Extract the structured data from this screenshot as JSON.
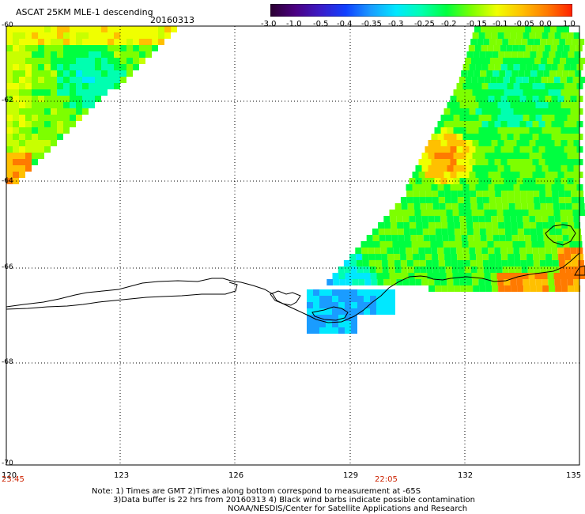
{
  "header": {
    "title": "ASCAT 25KM MLE-1 descending",
    "date": "20160313"
  },
  "colorbar": {
    "labels": [
      "-3.0",
      "-1.0",
      "-0.5",
      "-0.4",
      "-0.35",
      "-0.3",
      "-0.25",
      "-0.2",
      "-0.15",
      "-0.1",
      "-0.05",
      "0.0",
      "1.0"
    ],
    "colors": [
      "#2a0030",
      "#4b0082",
      "#3a1cc8",
      "#1040ff",
      "#1a9cff",
      "#00e8ff",
      "#00ffb0",
      "#00ff40",
      "#7dff00",
      "#f0ff00",
      "#ffc000",
      "#ff7a00",
      "#ff2000"
    ]
  },
  "map": {
    "lat_labels": [
      "-60",
      "-62",
      "-64",
      "-66",
      "-68",
      "-70"
    ],
    "lon_labels": [
      "120",
      "123",
      "126",
      "129",
      "132",
      "135"
    ],
    "time_labels": [
      "23:45",
      "22:05"
    ]
  },
  "notes": {
    "line1": "Note: 1) Times are GMT 2)Times along bottom correspond to measurement at -65S",
    "line2": "3)Data buffer is 22 hrs from 20160313 4) Black wind barbs indicate possible contamination",
    "line3": "NOAA/NESDIS/Center for Satellite Applications and Research"
  }
}
